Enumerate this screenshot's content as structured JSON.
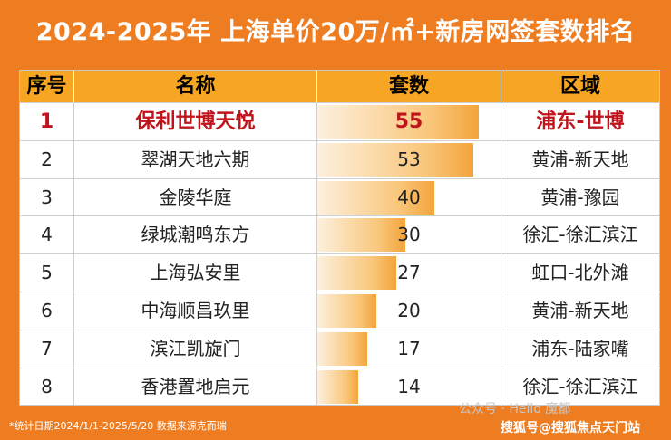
{
  "title": {
    "main": "2024-2025年 上海单价20万/㎡+新房网签套数排名",
    "sup": "2"
  },
  "headers": {
    "rank": "序号",
    "name": "名称",
    "count": "套数",
    "area": "区域"
  },
  "rows": [
    {
      "rank": "1",
      "name": "保利世博天悦",
      "count": "55",
      "area": "浦东-世博",
      "value": 55
    },
    {
      "rank": "2",
      "name": "翠湖天地六期",
      "count": "53",
      "area": "黄浦-新天地",
      "value": 53
    },
    {
      "rank": "3",
      "name": "金陵华庭",
      "count": "40",
      "area": "黄浦-豫园",
      "value": 40
    },
    {
      "rank": "4",
      "name": "绿城潮鸣东方",
      "count": "30",
      "area": "徐汇-徐汇滨江",
      "value": 30
    },
    {
      "rank": "5",
      "name": "上海弘安里",
      "count": "27",
      "area": "虹口-北外滩",
      "value": 27
    },
    {
      "rank": "6",
      "name": "中海顺昌玖里",
      "count": "20",
      "area": "黄浦-新天地",
      "value": 20
    },
    {
      "rank": "7",
      "name": "滨江凯旋门",
      "count": "17",
      "area": "浦东-陆家嘴",
      "value": 17
    },
    {
      "rank": "8",
      "name": "香港置地启元",
      "count": "14",
      "area": "徐汇-徐汇滨江",
      "value": 14
    }
  ],
  "bar_max": 55,
  "footnote": "*统计日期2024/1/1-2025/5/20 数据来源克而瑞",
  "watermark": "公众号 · Hello 魔都",
  "source": "搜狐号@搜狐焦点天门站",
  "colors": {
    "background": "#ee7d22",
    "header": "#f7a623",
    "highlight_text": "#c0141c"
  }
}
